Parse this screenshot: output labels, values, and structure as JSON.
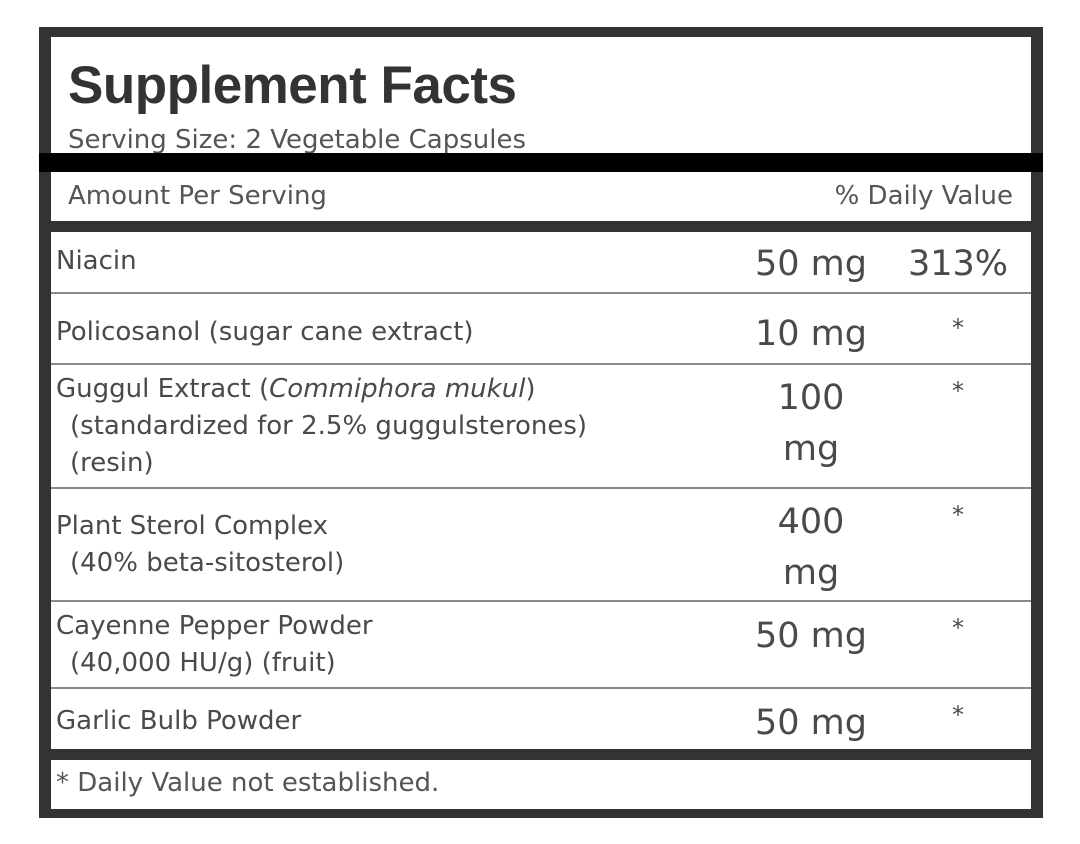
{
  "title": "Supplement Facts",
  "serving_size": "Serving Size: 2 Vegetable Capsules",
  "header": {
    "amount_per_serving": "Amount Per Serving",
    "daily_value": "% Daily Value"
  },
  "rows": [
    {
      "name": "Niacin",
      "amount": "50 mg",
      "dv": "313%"
    },
    {
      "name": "Policosanol (sugar cane extract)",
      "amount": "10 mg",
      "dv": "*"
    },
    {
      "name_prefix": "Guggul Extract (",
      "name_italic": "Commiphora mukul",
      "name_suffix": ")",
      "sub1": "(standardized for 2.5% guggulsterones)",
      "sub2": "(resin)",
      "amount_l1": "100",
      "amount_l2": "mg",
      "dv": "*"
    },
    {
      "name": "Plant Sterol Complex",
      "sub1": "(40% beta-sitosterol)",
      "amount_l1": "400",
      "amount_l2": "mg",
      "dv": "*"
    },
    {
      "name": "Cayenne Pepper Powder",
      "sub1": "(40,000 HU/g) (fruit)",
      "amount": "50 mg",
      "dv": "*"
    },
    {
      "name": "Garlic Bulb Powder",
      "amount": "50 mg",
      "dv": "*"
    }
  ],
  "footnote": "* Daily Value not established.",
  "colors": {
    "frame": "#333333",
    "divider": "#000000",
    "row_line": "#8a8a8a",
    "text": "#4a4a4a"
  }
}
